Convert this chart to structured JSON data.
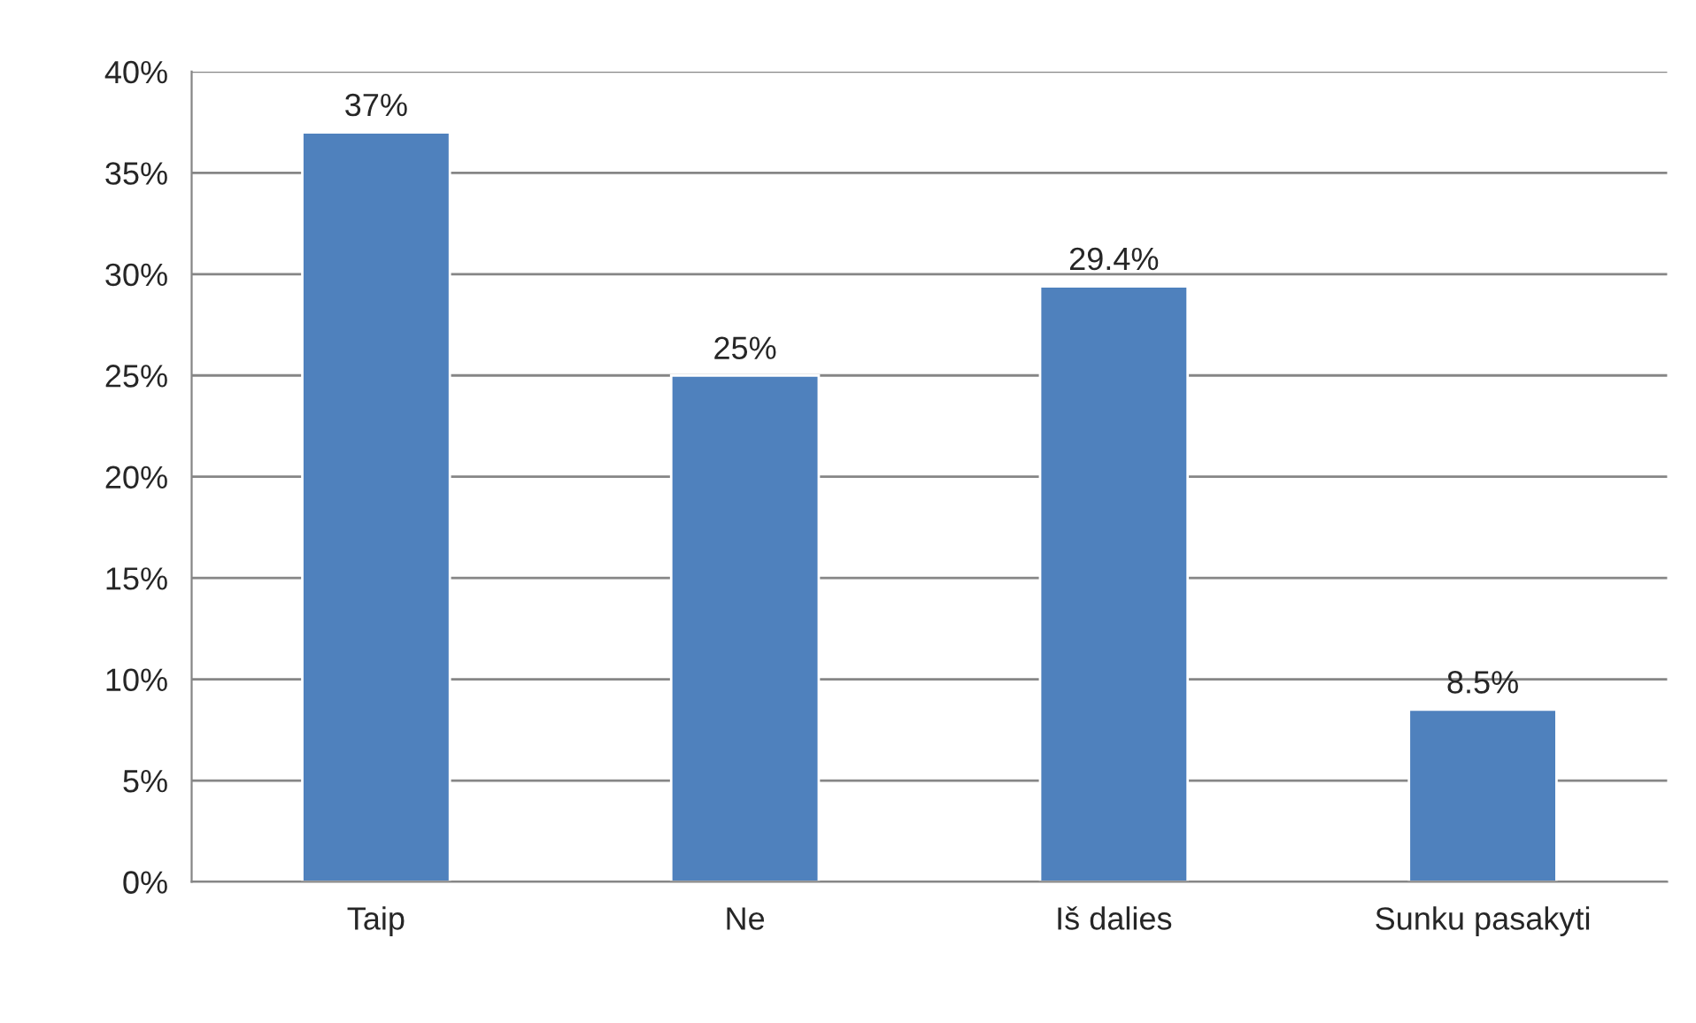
{
  "chart_data": {
    "type": "bar",
    "categories": [
      "Taip",
      "Ne",
      "Iš dalies",
      "Sunku pasakyti"
    ],
    "values": [
      37,
      25,
      29.4,
      8.5
    ],
    "value_labels": [
      "37%",
      "25%",
      "29.4%",
      "8.5%"
    ],
    "color": "#4f81bd",
    "ylim": [
      0,
      40
    ],
    "yticks": [
      {
        "value": 0,
        "label": "0%"
      },
      {
        "value": 5,
        "label": "5%"
      },
      {
        "value": 10,
        "label": "10%"
      },
      {
        "value": 15,
        "label": "15%"
      },
      {
        "value": 20,
        "label": "20%"
      },
      {
        "value": 25,
        "label": "25%"
      },
      {
        "value": 30,
        "label": "30%"
      },
      {
        "value": 35,
        "label": "35%"
      },
      {
        "value": 40,
        "label": "40%"
      }
    ],
    "grid": "y",
    "legend": false
  }
}
